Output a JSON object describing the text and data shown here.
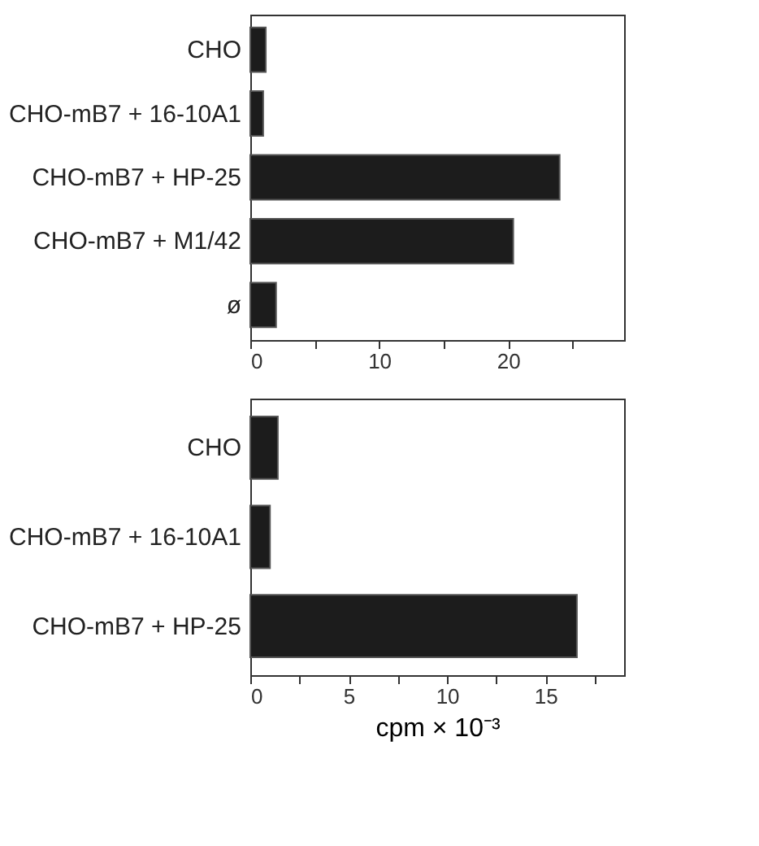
{
  "chart_data": [
    {
      "type": "bar",
      "orientation": "horizontal",
      "categories": [
        "CHO",
        "CHO-mB7 + 16-10A1",
        "CHO-mB7 + HP-25",
        "CHO-mB7 + M1/42",
        "ø"
      ],
      "values": [
        1.2,
        1.0,
        24,
        20.4,
        2.0
      ],
      "color": "#1c1c1c",
      "xlim": [
        0,
        29
      ],
      "xticks": [
        0,
        {
          "value": 5,
          "label": null
        },
        10,
        {
          "value": 15,
          "label": null
        },
        20,
        {
          "value": 25,
          "label": null
        }
      ],
      "grid": false
    },
    {
      "type": "bar",
      "orientation": "horizontal",
      "categories": [
        "CHO",
        "CHO-mB7 + 16-10A1",
        "CHO-mB7 + HP-25"
      ],
      "values": [
        1.4,
        1.0,
        16.6
      ],
      "color": "#1c1c1c",
      "xlim": [
        0,
        19
      ],
      "xticks": [
        0,
        {
          "value": 2.5,
          "label": null
        },
        5,
        {
          "value": 7.5,
          "label": null
        },
        10,
        {
          "value": 12.5,
          "label": null
        },
        15,
        {
          "value": 17.5,
          "label": null
        }
      ],
      "xlabel": "cpm × 10⁻³",
      "grid": false
    }
  ]
}
